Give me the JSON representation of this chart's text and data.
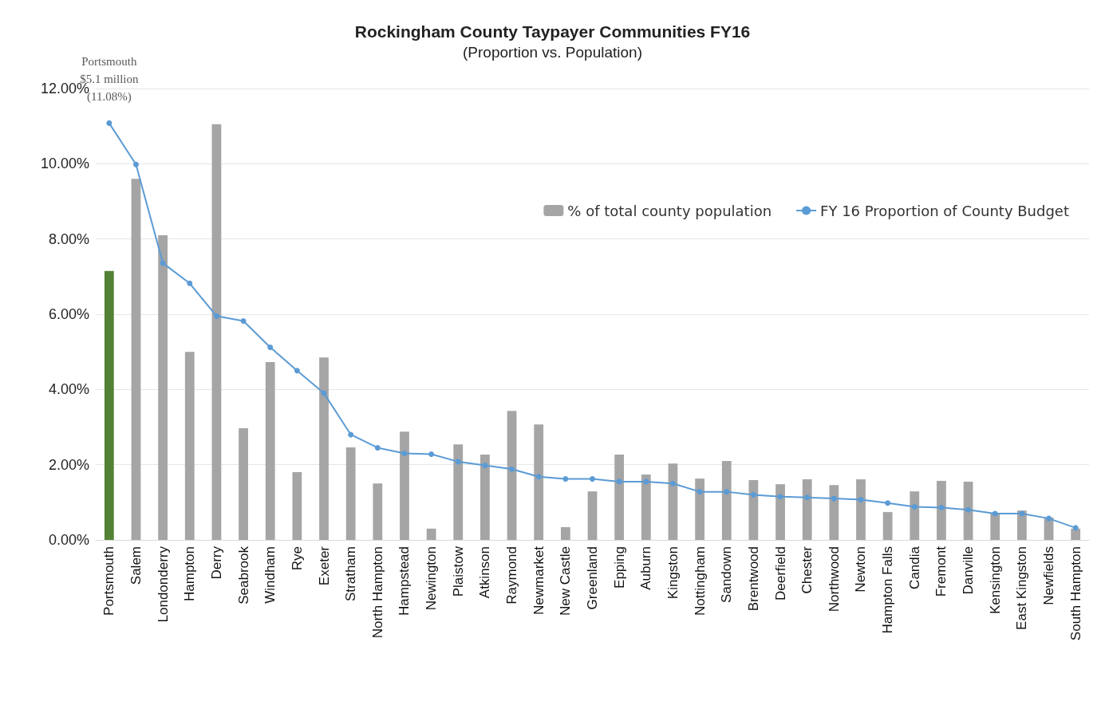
{
  "chart_data": {
    "type": "bar",
    "title": "Rockingham County Taypayer Communities FY16",
    "subtitle": "(Proportion vs. Population)",
    "categories": [
      "Portsmouth",
      "Salem",
      "Londonderry",
      "Hampton",
      "Derry",
      "Seabrook",
      "Windham",
      "Rye",
      "Exeter",
      "Stratham",
      "North Hampton",
      "Hampstead",
      "Newington",
      "Plaistow",
      "Atkinson",
      "Raymond",
      "Newmarket",
      "New Castle",
      "Greenland",
      "Epping",
      "Auburn",
      "Kingston",
      "Nottingham",
      "Sandown",
      "Brentwood",
      "Deerfield",
      "Chester",
      "Northwood",
      "Newton",
      "Hampton Falls",
      "Candia",
      "Fremont",
      "Danville",
      "Kensington",
      "East Kingston",
      "Newfields",
      "South Hampton"
    ],
    "series": [
      {
        "name": "% of total county population",
        "color": "#a5a5a5",
        "colors": [
          "#548235",
          "#a5a5a5",
          "#a5a5a5",
          "#a5a5a5",
          "#a5a5a5",
          "#a5a5a5",
          "#a5a5a5",
          "#a5a5a5",
          "#a5a5a5",
          "#a5a5a5",
          "#a5a5a5",
          "#a5a5a5",
          "#a5a5a5",
          "#a5a5a5",
          "#a5a5a5",
          "#a5a5a5",
          "#a5a5a5",
          "#a5a5a5",
          "#a5a5a5",
          "#a5a5a5",
          "#a5a5a5",
          "#a5a5a5",
          "#a5a5a5",
          "#a5a5a5",
          "#a5a5a5",
          "#a5a5a5",
          "#a5a5a5",
          "#a5a5a5",
          "#a5a5a5",
          "#a5a5a5",
          "#a5a5a5",
          "#a5a5a5",
          "#a5a5a5",
          "#a5a5a5",
          "#a5a5a5",
          "#a5a5a5",
          "#a5a5a5"
        ],
        "values": [
          7.15,
          9.6,
          8.1,
          5.0,
          11.05,
          2.97,
          4.73,
          1.8,
          4.85,
          2.46,
          1.5,
          2.88,
          0.3,
          2.54,
          2.27,
          3.43,
          3.07,
          0.34,
          1.29,
          2.27,
          1.74,
          2.03,
          1.63,
          2.1,
          1.59,
          1.48,
          1.61,
          1.46,
          1.61,
          0.74,
          1.29,
          1.57,
          1.55,
          0.7,
          0.78,
          0.6,
          0.3
        ]
      },
      {
        "name": "FY 16 Proportion of County Budget",
        "type": "line",
        "color": "#5b9bd5",
        "marker": "circle",
        "values": [
          11.08,
          9.98,
          7.36,
          6.82,
          5.95,
          5.82,
          5.12,
          4.5,
          3.9,
          2.8,
          2.45,
          2.3,
          2.28,
          2.08,
          1.98,
          1.88,
          1.68,
          1.62,
          1.62,
          1.55,
          1.55,
          1.5,
          1.28,
          1.28,
          1.2,
          1.15,
          1.13,
          1.1,
          1.07,
          0.98,
          0.88,
          0.86,
          0.8,
          0.7,
          0.7,
          0.57,
          0.32
        ]
      }
    ],
    "ylim": [
      0,
      12
    ],
    "yticks": [
      {
        "value": 0,
        "label": "0.00%"
      },
      {
        "value": 2,
        "label": "2.00%"
      },
      {
        "value": 4,
        "label": "4.00%"
      },
      {
        "value": 6,
        "label": "6.00%"
      },
      {
        "value": 8,
        "label": "8.00%"
      },
      {
        "value": 10,
        "label": "10.00%"
      },
      {
        "value": 12,
        "label": "12.00%"
      }
    ],
    "grid": "y",
    "legend": "top right",
    "annotations": [
      {
        "text": "Portsmouth\n$5.1 million\n(11.08%)",
        "x": "Portsmouth",
        "y": 11.08
      }
    ]
  }
}
